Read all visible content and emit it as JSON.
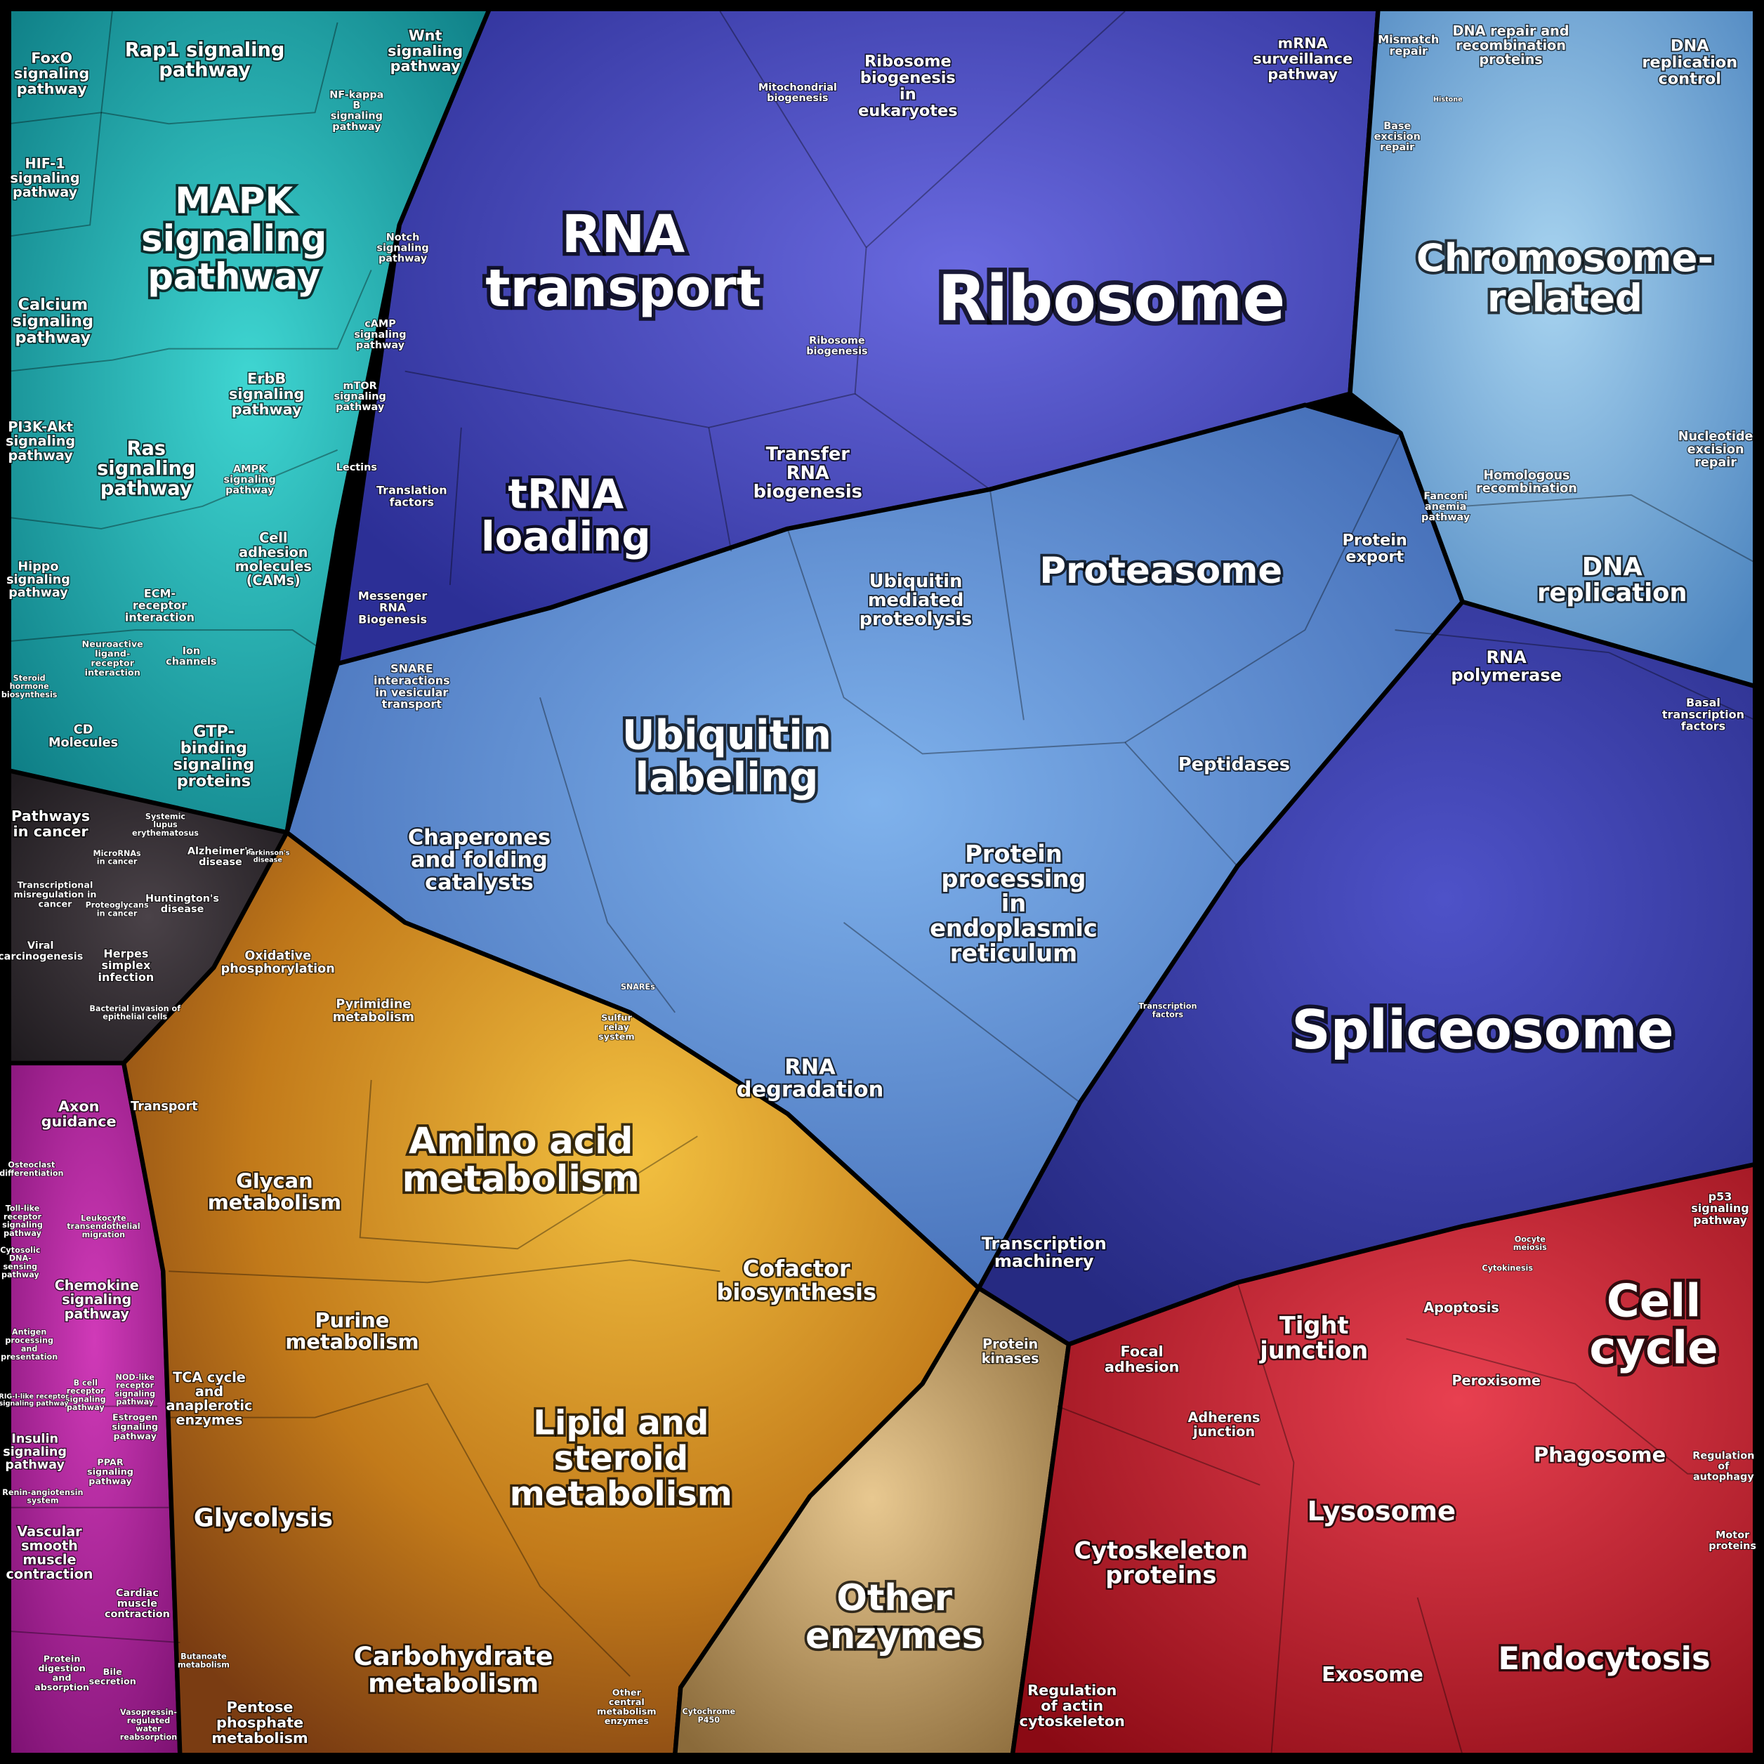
{
  "regions": [
    "FoxO signaling pathway",
    "Rap1 signaling pathway",
    "Wnt signaling pathway",
    "HIF-1 signaling pathway",
    "MAPK signaling pathway",
    "NF-kappa B signaling pathway",
    "Notch signaling pathway",
    "Calcium signaling pathway",
    "cAMP signaling pathway",
    "mTOR signaling pathway",
    "ErbB signaling pathway",
    "PI3K-Akt signaling pathway",
    "Ras signaling pathway",
    "AMPK signaling pathway",
    "Lectins",
    "Cell adhesion molecules (CAMs)",
    "Hippo signaling pathway",
    "ECM-receptor interaction",
    "Neuroactive ligand-receptor interaction",
    "Ion channels",
    "Steroid hormone biosynthesis",
    "CD Molecules",
    "GTP-binding signaling proteins",
    "Pathways in cancer",
    "Systemic lupus erythematosus",
    "Alzheimer's disease",
    "Parkinson's disease",
    "MicroRNAs in cancer",
    "Transcriptional misregulation in cancer",
    "Proteoglycans in cancer",
    "Huntington's disease",
    "Viral carcinogenesis",
    "Herpes simplex infection",
    "Bacterial invasion of epithelial cells",
    "Axon guidance",
    "Osteoclast differentiation",
    "Toll-like receptor signaling pathway",
    "Leukocyte transendothelial migration",
    "Cytosolic DNA-sensing pathway",
    "Chemokine signaling pathway",
    "Antigen processing and presentation",
    "B cell receptor signaling pathway",
    "NOD-like receptor signaling pathway",
    "RIG-I-like receptor signaling pathway",
    "Insulin signaling pathway",
    "Estrogen signaling pathway",
    "PPAR signaling pathway",
    "Renin-angiotensin system",
    "Vascular smooth muscle contraction",
    "Cardiac muscle contraction",
    "Protein digestion and absorption",
    "Bile secretion",
    "Vasopressin-regulated water reabsorption",
    "RNA transport",
    "Mitochondrial biogenesis",
    "Ribosome biogenesis in eukaryotes",
    "mRNA surveillance pathway",
    "Ribosome",
    "Ribosome biogenesis",
    "tRNA loading",
    "Translation factors",
    "Transfer RNA biogenesis",
    "Messenger RNA Biogenesis",
    "Spliceosome",
    "RNA polymerase",
    "Basal transcription factors",
    "Transcription factors",
    "Transcription machinery",
    "Ubiquitin labeling",
    "Proteasome",
    "Ubiquitin mediated proteolysis",
    "SNARE interactions in vesicular transport",
    "Chaperones and folding catalysts",
    "Protein processing in endoplasmic reticulum",
    "Peptidases",
    "Protein export",
    "RNA degradation",
    "Sulfur relay system",
    "SNAREs",
    "Mismatch repair",
    "DNA repair and recombination proteins",
    "DNA replication control",
    "Base excision repair",
    "Histone",
    "Chromosome-related",
    "Nucleotide excision repair",
    "Homologous recombination",
    "Fanconi anemia pathway",
    "DNA replication",
    "Oxidative phosphorylation",
    "Pyrimidine metabolism",
    "Transport",
    "Amino acid metabolism",
    "Glycan metabolism",
    "Cofactor biosynthesis",
    "Purine metabolism",
    "TCA cycle and anaplerotic enzymes",
    "Lipid and steroid metabolism",
    "Glycolysis",
    "Carbohydrate metabolism",
    "Butanoate metabolism",
    "Pentose phosphate metabolism",
    "Other central metabolism enzymes",
    "Cytochrome P450",
    "Protein kinases",
    "Other enzymes",
    "p53 signaling pathway",
    "Cell cycle",
    "Oocyte meiosis",
    "Cytokinesis",
    "Apoptosis",
    "Tight junction",
    "Focal adhesion",
    "Adherens junction",
    "Peroxisome",
    "Phagosome",
    "Regulation of autophagy",
    "Lysosome",
    "Motor proteins",
    "Cytoskeleton proteins",
    "Endocytosis",
    "Exosome",
    "Regulation of actin cytoskeleton"
  ]
}
